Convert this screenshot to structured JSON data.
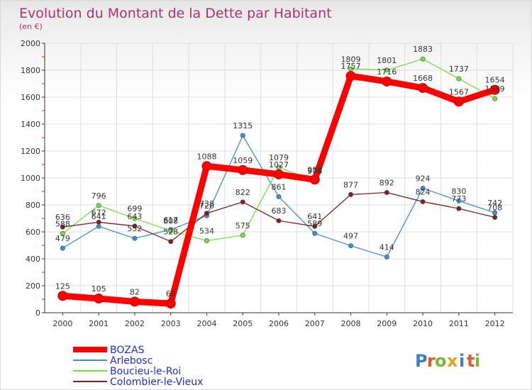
{
  "chart_data": {
    "type": "line",
    "title": "Evolution du Montant de la Dette par Habitant",
    "subtitle": "(en €)",
    "xlabel": "",
    "ylabel": "",
    "categories": [
      "2000",
      "2001",
      "2002",
      "2003",
      "2004",
      "2005",
      "2006",
      "2007",
      "2008",
      "2009",
      "2010",
      "2011",
      "2012"
    ],
    "ylim": [
      0,
      2000
    ],
    "yticks": [
      0,
      200,
      400,
      600,
      800,
      1000,
      1200,
      1400,
      1600,
      1800,
      2000
    ],
    "grid": true,
    "legend_position": "bottom-left",
    "series": [
      {
        "name": "BOZAS",
        "color": "#ff0000",
        "emphasis": true,
        "values": [
          125,
          105,
          82,
          68,
          1088,
          1059,
          1027,
          988,
          1757,
          1716,
          1668,
          1567,
          1654
        ]
      },
      {
        "name": "Arlebosc",
        "color": "#3f8fcf",
        "values": [
          479,
          641,
          552,
          617,
          720,
          1315,
          861,
          589,
          497,
          414,
          924,
          830,
          742
        ]
      },
      {
        "name": "Boucieu-le-Roi",
        "color": "#77dd44",
        "values": [
          588,
          796,
          699,
          608,
          534,
          575,
          1079,
          978,
          1809,
          1801,
          1883,
          1737,
          1589
        ]
      },
      {
        "name": "Colombier-le-Vieux",
        "color": "#7a2222",
        "values": [
          636,
          672,
          643,
          528,
          738,
          822,
          683,
          641,
          877,
          892,
          824,
          773,
          708
        ]
      }
    ]
  },
  "logo": {
    "text": "Proxiti",
    "letters": [
      "P",
      "r",
      "o",
      "x",
      "i",
      "t",
      "i"
    ]
  }
}
